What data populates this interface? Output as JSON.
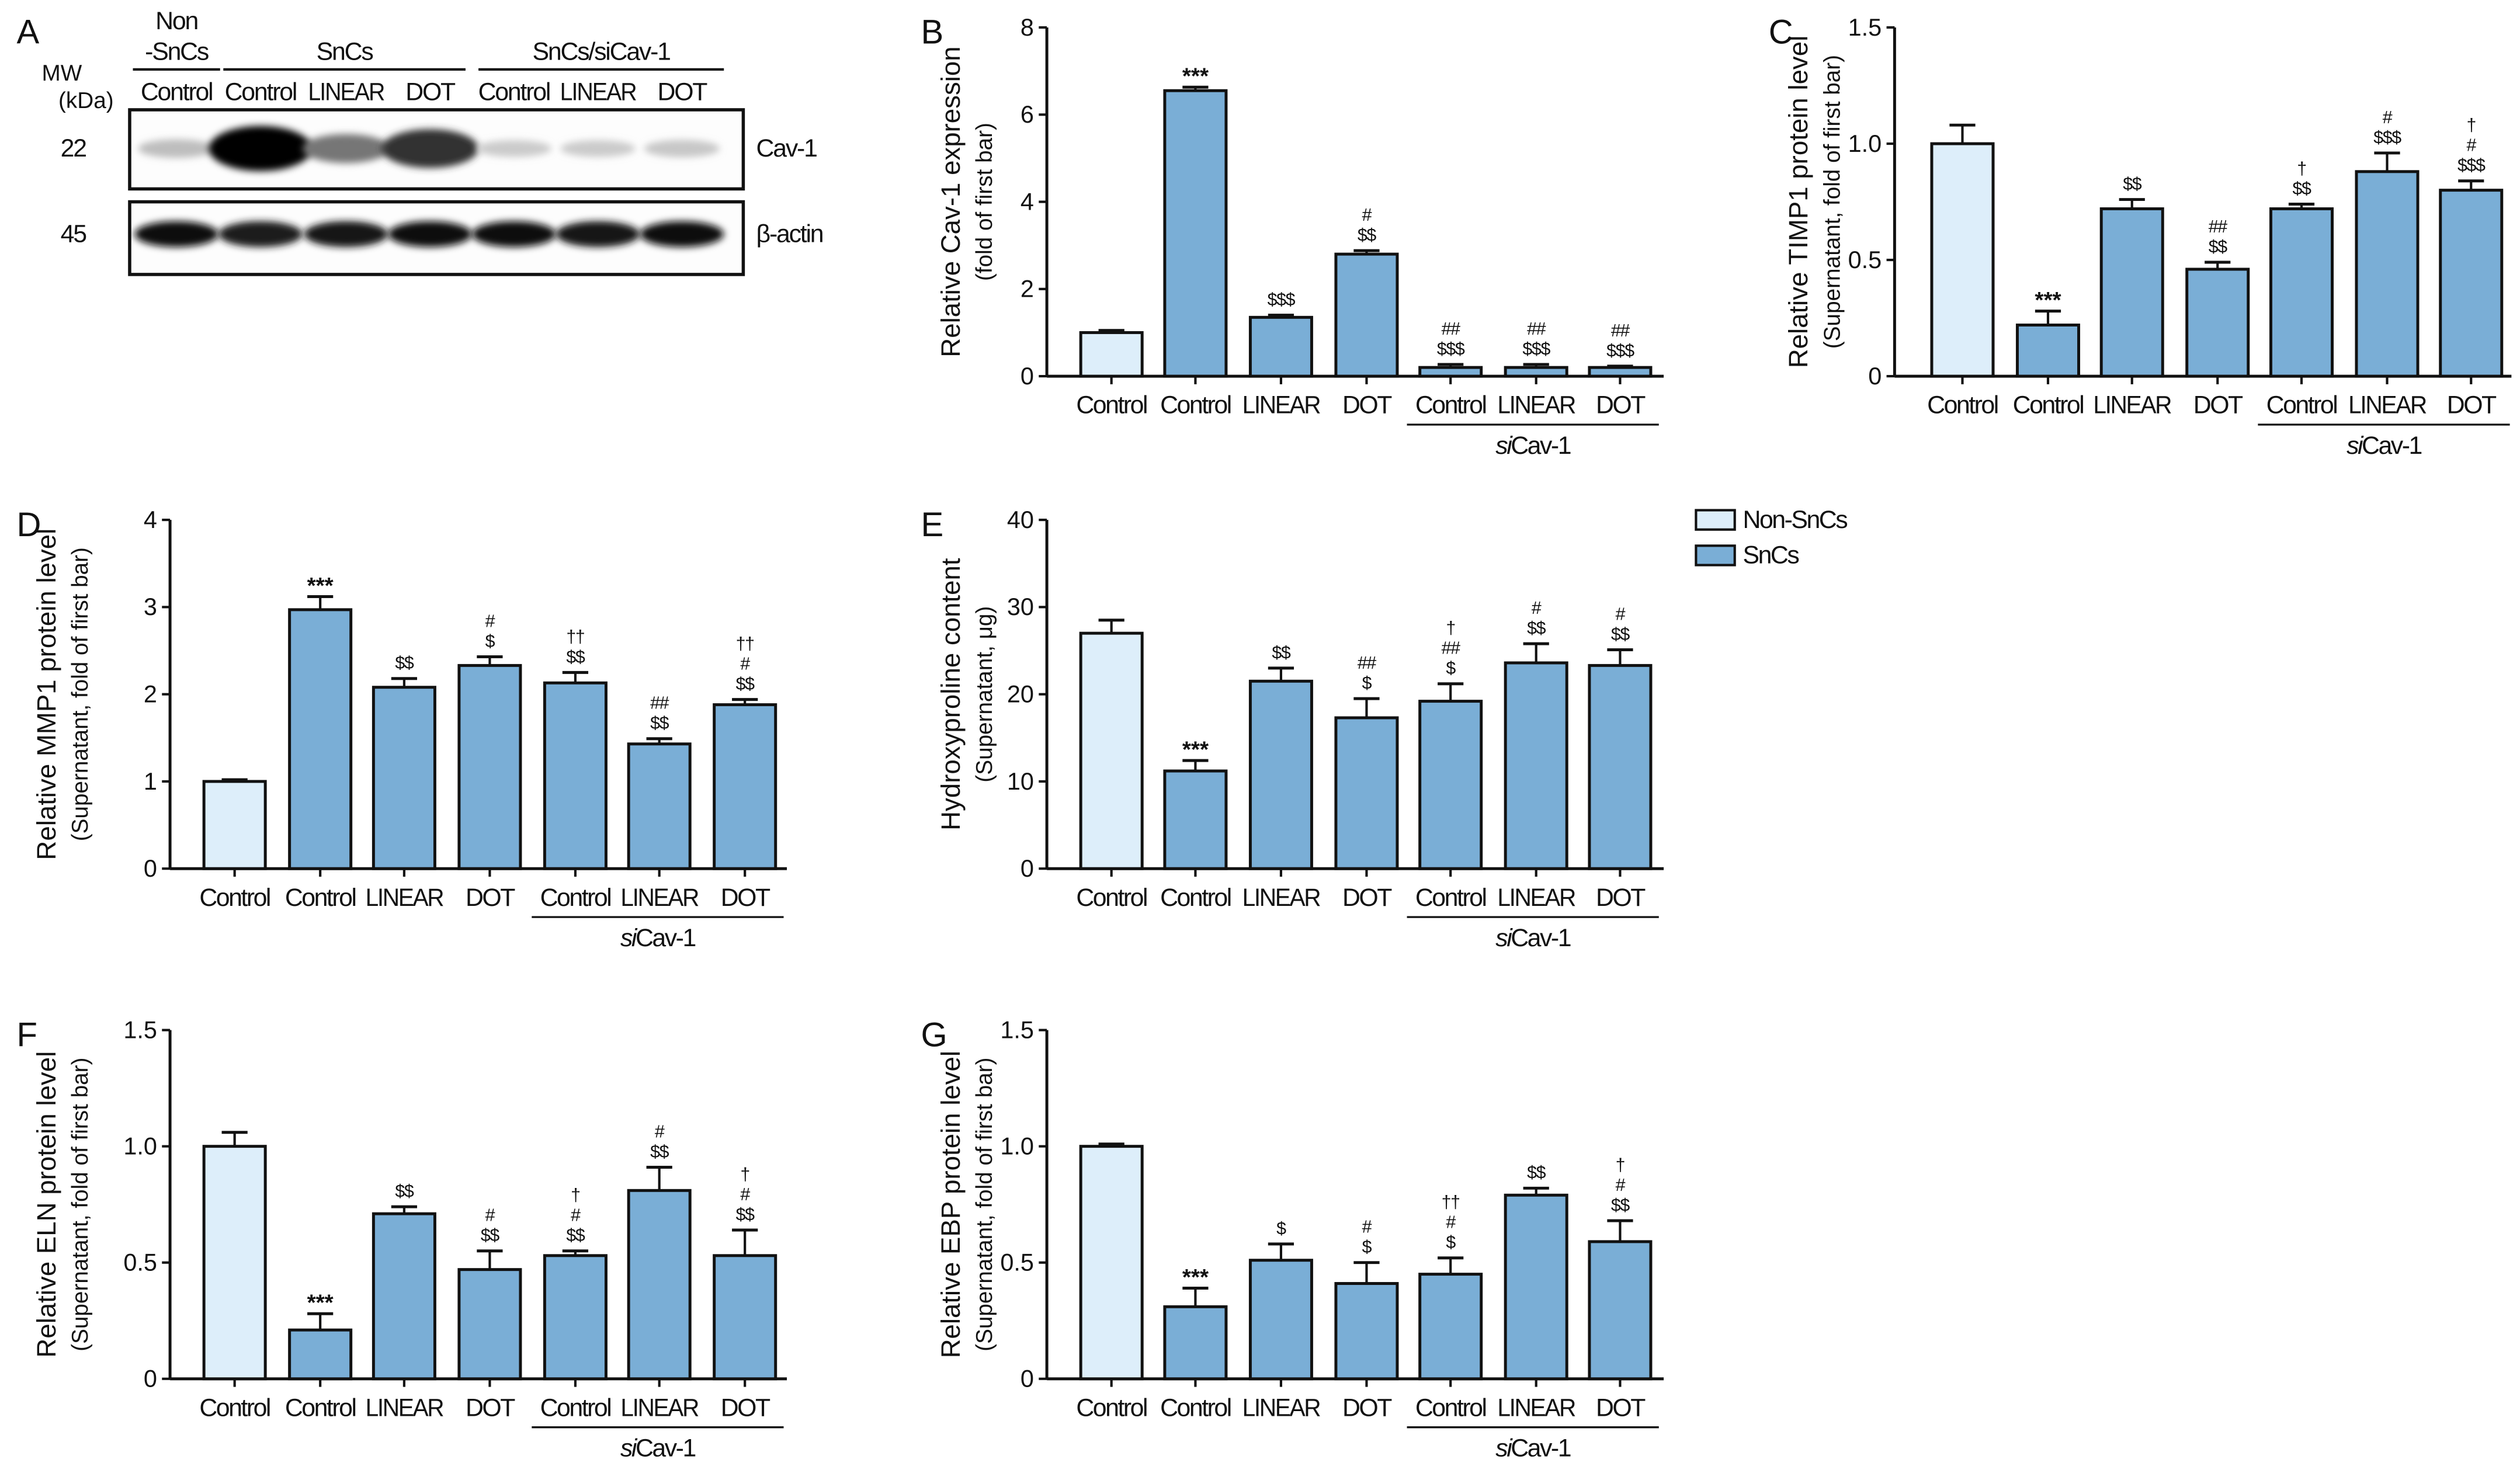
{
  "colors": {
    "non_sncs": "#ddeefa",
    "sncs": "#7aaed6",
    "stroke": "#111111"
  },
  "legend": {
    "items": [
      {
        "label": "Non-SnCs",
        "color": "#ddeefa"
      },
      {
        "label": "SnCs",
        "color": "#7aaed6"
      }
    ]
  },
  "blot": {
    "panel_label": "A",
    "mw_label": [
      "MW",
      "(kDa)"
    ],
    "groups": [
      {
        "label": [
          "Non",
          "-SnCs"
        ],
        "lanes": 1
      },
      {
        "label": [
          "SnCs"
        ],
        "lanes": 3
      },
      {
        "label": [
          "SnCs/siCav-1"
        ],
        "lanes": 3
      }
    ],
    "lanes": [
      "Control",
      "Control",
      "LINEAR",
      "DOT",
      "Control",
      "LINEAR",
      "DOT"
    ],
    "bands": [
      {
        "protein": "Cav-1",
        "mw": "22",
        "intensity": [
          0.18,
          1.0,
          0.5,
          0.8,
          0.12,
          0.12,
          0.14
        ]
      },
      {
        "protein": "β-actin",
        "mw": "45",
        "intensity": [
          0.95,
          0.9,
          0.92,
          0.95,
          0.95,
          0.92,
          0.95
        ]
      }
    ]
  },
  "chart_data": [
    {
      "panel": "B",
      "type": "bar",
      "ylabel": "Relative Cav-1 expression",
      "ysub": "(fold of first bar)",
      "ylim": [
        0,
        8
      ],
      "ticks": [
        "0",
        "2",
        "4",
        "6",
        "8"
      ],
      "tick_values": [
        0,
        2,
        4,
        6,
        8
      ],
      "categories": [
        "Control",
        "Control",
        "LINEAR",
        "DOT",
        "Control",
        "LINEAR",
        "DOT"
      ],
      "group_label": "siCav-1",
      "values": [
        1.0,
        6.55,
        1.35,
        2.8,
        0.2,
        0.2,
        0.2
      ],
      "errors": [
        0.05,
        0.08,
        0.05,
        0.08,
        0.07,
        0.07,
        0.03
      ],
      "annotations": [
        [],
        [
          "***"
        ],
        [
          "$$$"
        ],
        [
          "#",
          "$$"
        ],
        [
          "##",
          "$$$"
        ],
        [
          "##",
          "$$$"
        ],
        [
          "##",
          "$$$"
        ]
      ]
    },
    {
      "panel": "C",
      "type": "bar",
      "ylabel": "Relative TIMP1 protein level",
      "ysub": "(Supernatant, fold of first bar)",
      "ylim": [
        0,
        1.5
      ],
      "ticks": [
        "0",
        "0.5",
        "1.0",
        "1.5"
      ],
      "tick_values": [
        0,
        0.5,
        1,
        1.5
      ],
      "categories": [
        "Control",
        "Control",
        "LINEAR",
        "DOT",
        "Control",
        "LINEAR",
        "DOT"
      ],
      "group_label": "siCav-1",
      "values": [
        1.0,
        0.22,
        0.72,
        0.46,
        0.72,
        0.88,
        0.8
      ],
      "errors": [
        0.08,
        0.06,
        0.04,
        0.03,
        0.02,
        0.08,
        0.04
      ],
      "annotations": [
        [],
        [
          "***"
        ],
        [
          "$$"
        ],
        [
          "##",
          "$$"
        ],
        [
          "†",
          "$$"
        ],
        [
          "#",
          "$$$"
        ],
        [
          "†",
          "#",
          "$$$"
        ]
      ]
    },
    {
      "panel": "D",
      "type": "bar",
      "ylabel": "Relative MMP1 protein level",
      "ysub": "(Supernatant, fold of first bar)",
      "ylim": [
        0,
        4
      ],
      "ticks": [
        "0",
        "1",
        "2",
        "3",
        "4"
      ],
      "tick_values": [
        0,
        1,
        2,
        3,
        4
      ],
      "categories": [
        "Control",
        "Control",
        "LINEAR",
        "DOT",
        "Control",
        "LINEAR",
        "DOT"
      ],
      "group_label": "siCav-1",
      "values": [
        1.0,
        2.97,
        2.08,
        2.33,
        2.13,
        1.43,
        1.88
      ],
      "errors": [
        0.02,
        0.15,
        0.1,
        0.1,
        0.12,
        0.06,
        0.06
      ],
      "annotations": [
        [],
        [
          "***"
        ],
        [
          "$$"
        ],
        [
          "#",
          "$"
        ],
        [
          "††",
          "$$"
        ],
        [
          "##",
          "$$"
        ],
        [
          "††",
          "#",
          "$$"
        ]
      ]
    },
    {
      "panel": "E",
      "type": "bar",
      "ylabel": "Hydroxyproline content",
      "ysub": "(Supernatant, μg)",
      "ylim": [
        0,
        40
      ],
      "ticks": [
        "0",
        "10",
        "20",
        "30",
        "40"
      ],
      "tick_values": [
        0,
        10,
        20,
        30,
        40
      ],
      "categories": [
        "Control",
        "Control",
        "LINEAR",
        "DOT",
        "Control",
        "LINEAR",
        "DOT"
      ],
      "group_label": "siCav-1",
      "values": [
        27.0,
        11.2,
        21.5,
        17.3,
        19.2,
        23.6,
        23.3
      ],
      "errors": [
        1.5,
        1.2,
        1.5,
        2.2,
        2.0,
        2.2,
        1.8
      ],
      "annotations": [
        [],
        [
          "***"
        ],
        [
          "$$"
        ],
        [
          "##",
          "$"
        ],
        [
          "†",
          "##",
          "$"
        ],
        [
          "#",
          "$$"
        ],
        [
          "#",
          "$$"
        ]
      ]
    },
    {
      "panel": "F",
      "type": "bar",
      "ylabel": "Relative ELN protein level",
      "ysub": "(Supernatant, fold of first bar)",
      "ylim": [
        0,
        1.5
      ],
      "ticks": [
        "0",
        "0.5",
        "1.0",
        "1.5"
      ],
      "tick_values": [
        0,
        0.5,
        1,
        1.5
      ],
      "categories": [
        "Control",
        "Control",
        "LINEAR",
        "DOT",
        "Control",
        "LINEAR",
        "DOT"
      ],
      "group_label": "siCav-1",
      "values": [
        1.0,
        0.21,
        0.71,
        0.47,
        0.53,
        0.81,
        0.53
      ],
      "errors": [
        0.06,
        0.07,
        0.03,
        0.08,
        0.02,
        0.1,
        0.11
      ],
      "annotations": [
        [],
        [
          "***"
        ],
        [
          "$$"
        ],
        [
          "#",
          "$$"
        ],
        [
          "†",
          "#",
          "$$"
        ],
        [
          "#",
          "$$"
        ],
        [
          "†",
          "#",
          "$$"
        ]
      ]
    },
    {
      "panel": "G",
      "type": "bar",
      "ylabel": "Relative EBP protein level",
      "ysub": "(Supernatant, fold of first bar)",
      "ylim": [
        0,
        1.5
      ],
      "ticks": [
        "0",
        "0.5",
        "1.0",
        "1.5"
      ],
      "tick_values": [
        0,
        0.5,
        1,
        1.5
      ],
      "categories": [
        "Control",
        "Control",
        "LINEAR",
        "DOT",
        "Control",
        "LINEAR",
        "DOT"
      ],
      "group_label": "siCav-1",
      "values": [
        1.0,
        0.31,
        0.51,
        0.41,
        0.45,
        0.79,
        0.59
      ],
      "errors": [
        0.01,
        0.08,
        0.07,
        0.09,
        0.07,
        0.03,
        0.09
      ],
      "annotations": [
        [],
        [
          "***"
        ],
        [
          "$"
        ],
        [
          "#",
          "$"
        ],
        [
          "††",
          "#",
          "$"
        ],
        [
          "$$"
        ],
        [
          "†",
          "#",
          "$$"
        ]
      ]
    }
  ]
}
